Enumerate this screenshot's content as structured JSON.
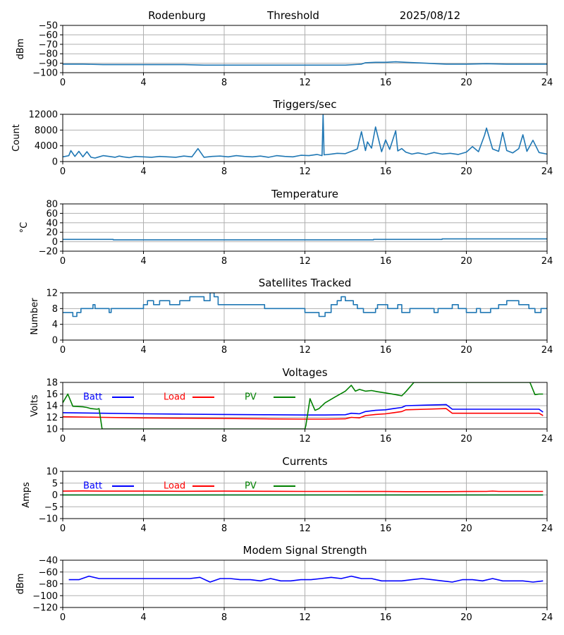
{
  "header": {
    "station": "Rodenburg",
    "mode": "Threshold",
    "date": "2025/08/12"
  },
  "chart_data": [
    {
      "id": "rssi",
      "type": "line",
      "title": "",
      "ylabel": "dBm",
      "xlim": [
        0,
        24
      ],
      "ylim": [
        -100,
        -50
      ],
      "xticks": [
        0,
        4,
        8,
        12,
        16,
        20,
        24
      ],
      "yticks": [
        -100,
        -90,
        -80,
        -70,
        -60,
        -50
      ],
      "grid": true,
      "series": [
        {
          "color": "#1f77b4",
          "x": [
            0,
            1,
            2,
            3,
            4,
            5,
            6,
            7,
            8,
            9,
            10,
            11,
            12,
            13,
            14,
            14.8,
            15,
            15.5,
            16,
            16.5,
            17,
            17.5,
            18,
            18.5,
            19,
            20,
            21,
            22,
            23,
            24
          ],
          "y": [
            -91,
            -91,
            -91.5,
            -91.5,
            -91.5,
            -91.5,
            -91.5,
            -92,
            -92,
            -92,
            -92,
            -92,
            -92,
            -92,
            -92,
            -91,
            -89.5,
            -89,
            -89,
            -88.5,
            -89,
            -89.5,
            -90,
            -90.5,
            -91,
            -91,
            -90.5,
            -91,
            -91,
            -91
          ]
        }
      ]
    },
    {
      "id": "triggers",
      "type": "line",
      "title": "Triggers/sec",
      "ylabel": "Count",
      "xlim": [
        0,
        24
      ],
      "ylim": [
        0,
        12000
      ],
      "xticks": [
        0,
        4,
        8,
        12,
        16,
        20,
        24
      ],
      "yticks": [
        0,
        4000,
        8000,
        12000
      ],
      "grid": true,
      "series": [
        {
          "color": "#1f77b4",
          "x": [
            0,
            0.3,
            0.4,
            0.6,
            0.8,
            1.0,
            1.2,
            1.4,
            1.6,
            1.8,
            2.0,
            2.3,
            2.6,
            2.8,
            3.0,
            3.3,
            3.6,
            4.0,
            4.4,
            4.8,
            5.2,
            5.6,
            6.0,
            6.4,
            6.7,
            7.0,
            7.4,
            7.8,
            8.2,
            8.6,
            9.0,
            9.4,
            9.8,
            10.2,
            10.6,
            11.0,
            11.4,
            11.8,
            12.2,
            12.6,
            12.85,
            12.9,
            12.95,
            13.3,
            13.6,
            14.0,
            14.3,
            14.6,
            14.8,
            15.0,
            15.1,
            15.3,
            15.5,
            15.8,
            16.0,
            16.2,
            16.5,
            16.6,
            16.8,
            17.0,
            17.3,
            17.6,
            18.0,
            18.4,
            18.8,
            19.2,
            19.6,
            20.0,
            20.3,
            20.6,
            20.9,
            21.0,
            21.3,
            21.6,
            21.8,
            22.0,
            22.3,
            22.6,
            22.8,
            23.0,
            23.3,
            23.6,
            24.0
          ],
          "y": [
            1200,
            1500,
            2800,
            1300,
            2600,
            1200,
            2500,
            1100,
            900,
            1200,
            1500,
            1300,
            1100,
            1400,
            1200,
            1000,
            1300,
            1200,
            1100,
            1300,
            1200,
            1100,
            1400,
            1200,
            3300,
            1100,
            1300,
            1400,
            1200,
            1500,
            1300,
            1200,
            1400,
            1100,
            1500,
            1300,
            1200,
            1600,
            1500,
            1800,
            1500,
            12000,
            1700,
            1900,
            2100,
            2000,
            2600,
            3200,
            7600,
            2800,
            5000,
            3400,
            8800,
            2500,
            5500,
            3100,
            7800,
            2700,
            3300,
            2400,
            1900,
            2200,
            1800,
            2300,
            1900,
            2100,
            1800,
            2400,
            3800,
            2500,
            6700,
            8500,
            3200,
            2600,
            7400,
            2800,
            2200,
            3300,
            6800,
            2600,
            5400,
            2300,
            1900
          ]
        }
      ]
    },
    {
      "id": "temperature",
      "type": "line",
      "title": "Temperature",
      "ylabel": "°C",
      "xlim": [
        0,
        24
      ],
      "ylim": [
        -20,
        80
      ],
      "xticks": [
        0,
        4,
        8,
        12,
        16,
        20,
        24
      ],
      "yticks": [
        -20,
        0,
        20,
        40,
        60,
        80
      ],
      "grid": true,
      "series": [
        {
          "color": "#1f77b4",
          "x": [
            0,
            2.5,
            2.5,
            15.4,
            15.4,
            18.8,
            18.8,
            24
          ],
          "y": [
            5,
            5,
            4,
            4,
            5,
            5,
            6,
            6
          ]
        }
      ]
    },
    {
      "id": "satellites",
      "type": "line",
      "title": "Satellites Tracked",
      "ylabel": "Number",
      "xlim": [
        0,
        24
      ],
      "ylim": [
        0,
        12
      ],
      "xticks": [
        0,
        4,
        8,
        12,
        16,
        20,
        24
      ],
      "yticks": [
        0,
        4,
        8,
        12
      ],
      "grid": true,
      "series": [
        {
          "color": "#1f77b4",
          "x": [
            0,
            0.1,
            0.1,
            0.5,
            0.5,
            0.7,
            0.7,
            0.9,
            0.9,
            1.0,
            1.0,
            1.5,
            1.5,
            1.6,
            1.6,
            1.8,
            1.8,
            2.3,
            2.3,
            2.4,
            2.4,
            4.0,
            4.0,
            4.2,
            4.2,
            4.5,
            4.5,
            4.8,
            4.8,
            5.0,
            5.0,
            5.3,
            5.3,
            5.8,
            5.8,
            6.3,
            6.3,
            7.0,
            7.0,
            7.3,
            7.3,
            7.5,
            7.5,
            7.7,
            7.7,
            8.3,
            8.3,
            10.0,
            10.0,
            10.2,
            10.2,
            12.0,
            12.0,
            12.7,
            12.7,
            13.0,
            13.0,
            13.3,
            13.3,
            13.6,
            13.6,
            13.8,
            13.8,
            14.0,
            14.0,
            14.4,
            14.4,
            14.6,
            14.6,
            14.9,
            14.9,
            15.5,
            15.5,
            15.6,
            15.6,
            16.1,
            16.1,
            16.6,
            16.6,
            16.8,
            16.8,
            17.2,
            17.2,
            17.4,
            17.4,
            18.4,
            18.4,
            18.6,
            18.6,
            19.3,
            19.3,
            19.6,
            19.6,
            20.0,
            20.0,
            20.5,
            20.5,
            20.7,
            20.7,
            21.2,
            21.2,
            21.6,
            21.6,
            22.0,
            22.0,
            22.6,
            22.6,
            23.1,
            23.1,
            23.4,
            23.4,
            23.7,
            23.7,
            24
          ],
          "y": [
            7,
            7,
            7,
            7,
            6,
            6,
            7,
            7,
            8,
            8,
            8,
            8,
            9,
            9,
            8,
            8,
            8,
            8,
            7,
            7,
            8,
            8,
            9,
            9,
            10,
            10,
            9,
            9,
            10,
            10,
            10,
            10,
            9,
            9,
            10,
            10,
            11,
            11,
            10,
            10,
            12,
            12,
            11,
            11,
            9,
            9,
            9,
            9,
            8,
            8,
            8,
            8,
            7,
            7,
            6,
            6,
            7,
            7,
            9,
            9,
            10,
            10,
            11,
            11,
            10,
            10,
            9,
            9,
            8,
            8,
            7,
            7,
            8,
            8,
            9,
            9,
            8,
            8,
            9,
            9,
            7,
            7,
            8,
            8,
            8,
            8,
            7,
            7,
            8,
            8,
            9,
            9,
            8,
            8,
            7,
            7,
            8,
            8,
            7,
            7,
            8,
            8,
            9,
            9,
            10,
            10,
            9,
            9,
            8,
            8,
            7,
            7,
            8,
            8
          ]
        }
      ]
    },
    {
      "id": "voltages",
      "type": "line",
      "title": "Voltages",
      "ylabel": "Volts",
      "xlim": [
        0,
        24
      ],
      "ylim": [
        10,
        18
      ],
      "xticks": [
        0,
        4,
        8,
        12,
        16,
        20,
        24
      ],
      "yticks": [
        10,
        12,
        14,
        16,
        18
      ],
      "grid": true,
      "legend": "top-left",
      "series": [
        {
          "name": "Batt",
          "color": "#0000ff",
          "x": [
            0,
            2,
            4,
            6,
            8,
            10,
            12,
            13,
            14,
            14.3,
            14.7,
            15,
            15.5,
            16,
            16.4,
            16.8,
            17,
            18,
            19,
            19.3,
            20,
            22,
            23.6,
            23.8
          ],
          "y": [
            12.8,
            12.7,
            12.6,
            12.55,
            12.5,
            12.45,
            12.4,
            12.4,
            12.45,
            12.7,
            12.6,
            13.0,
            13.2,
            13.3,
            13.5,
            13.7,
            14.0,
            14.1,
            14.2,
            13.4,
            13.4,
            13.4,
            13.4,
            12.9
          ]
        },
        {
          "name": "Load",
          "color": "#ff0000",
          "x": [
            0,
            2,
            4,
            6,
            8,
            10,
            12,
            13,
            14,
            14.3,
            14.7,
            15,
            15.5,
            16,
            16.4,
            16.8,
            17,
            18,
            19,
            19.3,
            20,
            22,
            23.6,
            23.8
          ],
          "y": [
            12.1,
            12.0,
            11.9,
            11.85,
            11.8,
            11.75,
            11.7,
            11.7,
            11.75,
            12.0,
            11.9,
            12.3,
            12.5,
            12.6,
            12.8,
            13.0,
            13.3,
            13.4,
            13.5,
            12.7,
            12.7,
            12.7,
            12.7,
            12.3
          ]
        },
        {
          "name": "PV",
          "color": "#008000",
          "x": [
            0,
            0.25,
            0.5,
            1.0,
            1.2,
            1.4,
            1.7,
            1.8,
            1.95,
            12.0,
            12.05,
            12.25,
            12.5,
            12.7,
            13.0,
            13.5,
            14.0,
            14.3,
            14.5,
            14.7,
            15.0,
            15.3,
            15.6,
            16.0,
            16.5,
            16.8,
            17.0,
            17.3,
            17.4,
            23.15,
            23.4,
            23.6,
            23.8
          ],
          "y": [
            14.5,
            16.0,
            13.9,
            13.8,
            13.7,
            13.5,
            13.4,
            13.5,
            10.0,
            10.0,
            10.6,
            15.2,
            13.2,
            13.5,
            14.5,
            15.5,
            16.5,
            17.5,
            16.5,
            16.8,
            16.5,
            16.6,
            16.4,
            16.2,
            15.9,
            15.7,
            16.4,
            17.6,
            18.0,
            18.0,
            15.9,
            16.0,
            16.0
          ]
        }
      ]
    },
    {
      "id": "currents",
      "type": "line",
      "title": "Currents",
      "ylabel": "Amps",
      "xlim": [
        0,
        24
      ],
      "ylim": [
        -10,
        10
      ],
      "xticks": [
        0,
        4,
        8,
        12,
        16,
        20,
        24
      ],
      "yticks": [
        -10,
        -5,
        0,
        5,
        10
      ],
      "grid": true,
      "legend": "top-left",
      "series": [
        {
          "name": "Batt",
          "color": "#0000ff",
          "x": [
            0,
            23.8
          ],
          "y": [
            0,
            0
          ]
        },
        {
          "name": "Load",
          "color": "#ff0000",
          "x": [
            0,
            1,
            2,
            4,
            6,
            8,
            10,
            12,
            14,
            16,
            17,
            18,
            19,
            20,
            21,
            21.3,
            21.6,
            22,
            23.8
          ],
          "y": [
            1.6,
            1.7,
            1.6,
            1.6,
            1.55,
            1.6,
            1.55,
            1.5,
            1.5,
            1.45,
            1.4,
            1.4,
            1.4,
            1.45,
            1.5,
            1.65,
            1.5,
            1.5,
            1.5
          ]
        },
        {
          "name": "PV",
          "color": "#008000",
          "x": [
            0,
            23.8
          ],
          "y": [
            0,
            0
          ]
        }
      ]
    },
    {
      "id": "modem",
      "type": "line",
      "title": "Modem Signal Strength",
      "ylabel": "dBm",
      "xlim": [
        0,
        24
      ],
      "ylim": [
        -120,
        -40
      ],
      "xticks": [
        0,
        4,
        8,
        12,
        16,
        20,
        24
      ],
      "yticks": [
        -120,
        -100,
        -80,
        -60,
        -40
      ],
      "grid": true,
      "series": [
        {
          "color": "#0000ff",
          "x": [
            0.3,
            0.8,
            1.3,
            1.8,
            2.3,
            2.8,
            3.3,
            3.8,
            4.3,
            4.8,
            5.3,
            5.8,
            6.3,
            6.8,
            7.3,
            7.8,
            8.3,
            8.8,
            9.3,
            9.8,
            10.3,
            10.8,
            11.3,
            11.8,
            12.3,
            12.8,
            13.3,
            13.8,
            14.3,
            14.8,
            15.3,
            15.8,
            16.3,
            16.8,
            17.3,
            17.8,
            18.3,
            18.8,
            19.3,
            19.8,
            20.3,
            20.8,
            21.3,
            21.8,
            22.3,
            22.8,
            23.3,
            23.8
          ],
          "y": [
            -73,
            -73,
            -67,
            -71,
            -71,
            -71,
            -71,
            -71,
            -71,
            -71,
            -71,
            -71,
            -71,
            -69,
            -77,
            -71,
            -71,
            -73,
            -73,
            -75,
            -71,
            -75,
            -75,
            -73,
            -73,
            -71,
            -69,
            -71,
            -67,
            -71,
            -71,
            -75,
            -75,
            -75,
            -73,
            -71,
            -73,
            -75,
            -77,
            -73,
            -73,
            -75,
            -71,
            -75,
            -75,
            -75,
            -77,
            -75
          ]
        }
      ]
    }
  ]
}
